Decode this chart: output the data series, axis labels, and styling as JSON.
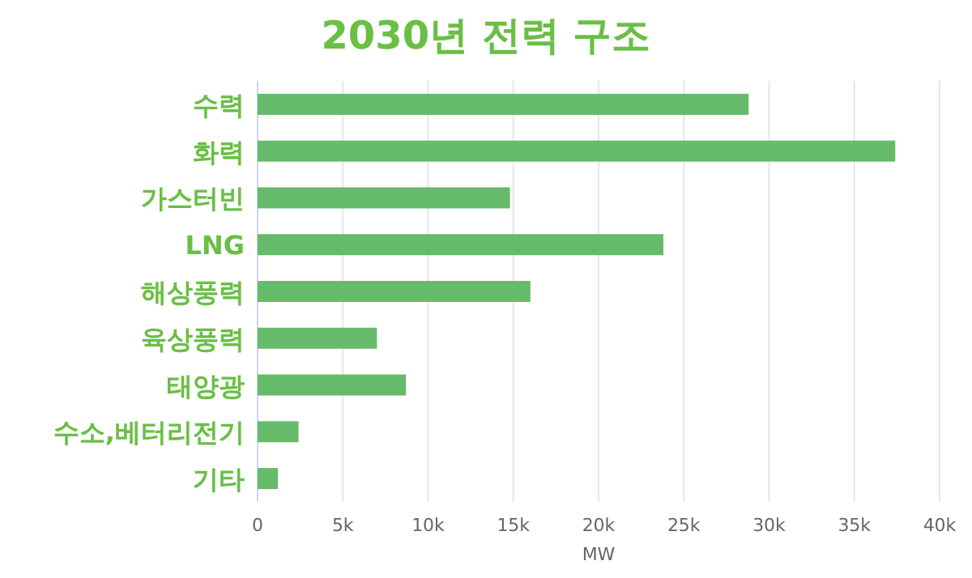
{
  "chart_data": {
    "type": "bar",
    "orientation": "horizontal",
    "title": "2030년 전력 구조",
    "xlabel": "MW",
    "categories": [
      "수력",
      "화력",
      "가스터빈",
      "LNG",
      "해상풍력",
      "육상풍력",
      "태양광",
      "수소,베터리전기",
      "기타"
    ],
    "values": [
      28.8,
      37.4,
      14.8,
      23.8,
      16.0,
      7.0,
      8.7,
      2.4,
      1.2
    ],
    "color": "#66bb6a",
    "xlim": [
      0,
      40
    ],
    "xticks": [
      0,
      {
        "value": 5,
        "label": "5k"
      },
      {
        "value": 10,
        "label": "10k"
      },
      {
        "value": 15,
        "label": "15k"
      },
      {
        "value": 20,
        "label": "20k"
      },
      {
        "value": 25,
        "label": "25k"
      },
      {
        "value": 30,
        "label": "30k"
      },
      {
        "value": 35,
        "label": "35k"
      },
      {
        "value": 40,
        "label": "40k"
      }
    ],
    "grid": "x"
  }
}
